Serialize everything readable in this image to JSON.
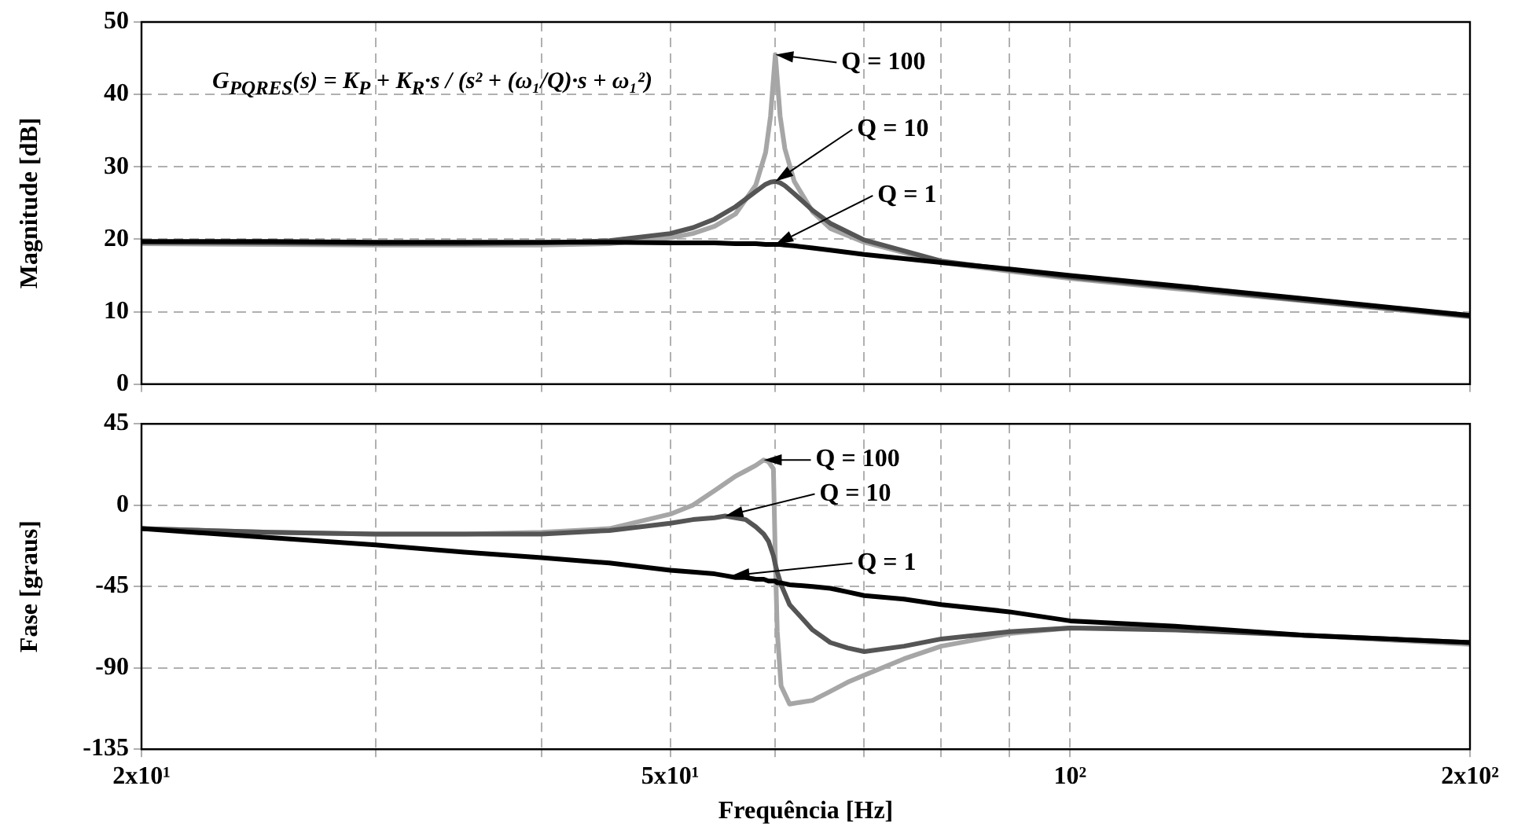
{
  "chart_data": [
    {
      "type": "line",
      "ylabel": "Magnitude [dB]",
      "xlim": [
        20,
        200
      ],
      "ylim": [
        0,
        50
      ],
      "yticks": [
        0,
        10,
        20,
        30,
        40,
        50
      ],
      "xticks": [
        {
          "value": 20,
          "label": null
        },
        {
          "value": 30,
          "label": null
        },
        {
          "value": 40,
          "label": null
        },
        {
          "value": 50,
          "label": null
        },
        {
          "value": 60,
          "label": null
        },
        {
          "value": 70,
          "label": null
        },
        {
          "value": 80,
          "label": null
        },
        {
          "value": 90,
          "label": null
        },
        {
          "value": 100,
          "label": null
        },
        {
          "value": 200,
          "label": null
        }
      ],
      "log": "x",
      "grid": true,
      "legend": false,
      "marker": "none",
      "line_style": "solid",
      "tick_labels": "y",
      "x": [
        20,
        25,
        30,
        35,
        40,
        45,
        50,
        52,
        54,
        56,
        58,
        59,
        59.5,
        60,
        60.5,
        61,
        62,
        64,
        66,
        70,
        80,
        90,
        100,
        120,
        150,
        200
      ],
      "series": [
        {
          "color": "#000000",
          "values": [
            19.7,
            19.7,
            19.6,
            19.6,
            19.6,
            19.6,
            19.5,
            19.5,
            19.5,
            19.4,
            19.4,
            19.3,
            19.3,
            19.3,
            19.3,
            19.2,
            19.1,
            18.8,
            18.5,
            17.9,
            16.8,
            15.9,
            15.0,
            13.6,
            11.8,
            9.5
          ]
        },
        {
          "color": "#555555",
          "values": [
            19.6,
            19.5,
            19.4,
            19.4,
            19.5,
            19.8,
            20.8,
            21.6,
            22.8,
            24.5,
            26.6,
            27.6,
            27.9,
            28.0,
            27.8,
            27.4,
            26.3,
            24.0,
            22.2,
            19.9,
            17.0,
            15.8,
            14.8,
            13.4,
            11.6,
            9.4
          ]
        },
        {
          "color": "#a6a6a6",
          "values": [
            19.4,
            19.3,
            19.2,
            19.2,
            19.2,
            19.4,
            20.2,
            20.8,
            21.8,
            23.5,
            27.5,
            32,
            37,
            45.5,
            37,
            32.5,
            28,
            23.8,
            21.5,
            19.6,
            16.8,
            15.6,
            14.6,
            13.2,
            11.5,
            9.3
          ]
        }
      ],
      "annotations": [
        "G$_{PQRES}$(s) = K$_{P}$ + K$_{R}$·s / (s² + (ω₁/Q)·s + ω₁²)",
        {
          "text": "Q = 100",
          "x": 60,
          "y": 45.5
        },
        {
          "text": "Q = 10",
          "x": 60,
          "y": 28
        },
        {
          "text": "Q = 1",
          "x": 60,
          "y": 19.3
        }
      ]
    },
    {
      "type": "line",
      "xlabel": "Frequência [Hz]",
      "ylabel": "Fase [graus]",
      "xlim": [
        20,
        200
      ],
      "ylim": [
        -135,
        45
      ],
      "yticks": [
        -135,
        -90,
        -45,
        0,
        45
      ],
      "xticks": [
        {
          "value": 20,
          "label": "2x10¹"
        },
        {
          "value": 30,
          "label": null
        },
        {
          "value": 40,
          "label": null
        },
        {
          "value": 50,
          "label": "5x10¹"
        },
        {
          "value": 60,
          "label": null
        },
        {
          "value": 70,
          "label": null
        },
        {
          "value": 80,
          "label": null
        },
        {
          "value": 90,
          "label": null
        },
        {
          "value": 100,
          "label": "10²"
        },
        {
          "value": 200,
          "label": "2x10²"
        }
      ],
      "log": "x",
      "grid": true,
      "legend": false,
      "marker": "none",
      "line_style": "solid",
      "x": [
        20,
        25,
        30,
        35,
        40,
        45,
        50,
        52,
        54,
        55,
        56,
        57,
        58,
        58.8,
        59.3,
        59.8,
        60,
        60.2,
        60.6,
        61.5,
        64,
        66,
        68,
        70,
        75,
        80,
        90,
        100,
        120,
        150,
        200
      ],
      "series": [
        {
          "color": "#000000",
          "values": [
            -13,
            -18,
            -22,
            -26,
            -29,
            -32,
            -36,
            -37,
            -38,
            -39,
            -40,
            -40,
            -41,
            -41,
            -42,
            -42,
            -42,
            -43,
            -43,
            -44,
            -45,
            -46,
            -48,
            -50,
            -52,
            -55,
            -59,
            -64,
            -67,
            -72,
            -76
          ]
        },
        {
          "color": "#555555",
          "values": [
            -13,
            -15,
            -16,
            -16,
            -16,
            -14,
            -10,
            -8,
            -7,
            -6,
            -7,
            -8,
            -12,
            -16,
            -20,
            -28,
            -33,
            -37,
            -44,
            -55,
            -69,
            -76,
            -79,
            -81,
            -78,
            -74,
            -70,
            -68,
            -69,
            -72,
            -76
          ]
        },
        {
          "color": "#a6a6a6",
          "values": [
            -13,
            -15,
            -16,
            -16,
            -15,
            -13,
            -5,
            0,
            8,
            12,
            16,
            19,
            22,
            25,
            24,
            20,
            -30,
            -70,
            -100,
            -110,
            -108,
            -103,
            -98,
            -94,
            -85,
            -78,
            -71,
            -68,
            -68,
            -72,
            -77
          ]
        }
      ],
      "annotations": [
        {
          "text": "Q = 100",
          "x": 58.8,
          "y": 25
        },
        {
          "text": "Q = 10",
          "x": 55,
          "y": -6
        },
        {
          "text": "Q = 1",
          "x": 55.6,
          "y": -39
        }
      ]
    }
  ]
}
